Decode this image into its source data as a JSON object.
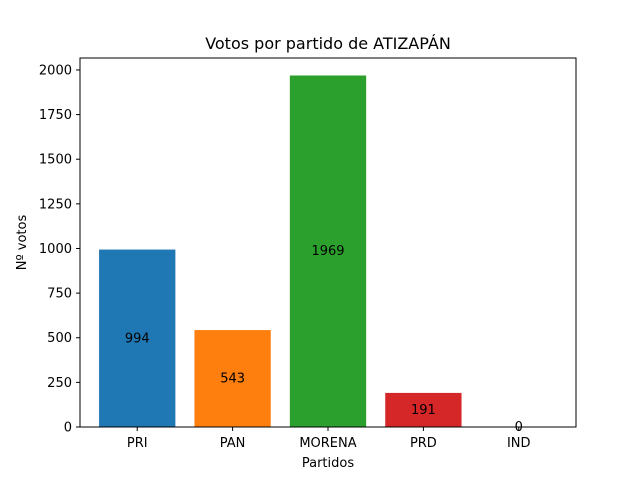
{
  "chart_data": {
    "type": "bar",
    "title": "Votos por partido de ATIZAPÁN",
    "xlabel": "Partidos",
    "ylabel": "Nº votos",
    "categories": [
      "PRI",
      "PAN",
      "MORENA",
      "PRD",
      "IND"
    ],
    "values": [
      994,
      543,
      1969,
      191,
      0
    ],
    "value_labels": [
      "994",
      "543",
      "1969",
      "191",
      "0"
    ],
    "colors": [
      "#1f77b4",
      "#ff7f0e",
      "#2ca02c",
      "#d62728",
      "#9467bd"
    ],
    "ylim": [
      0,
      2067
    ],
    "yticks": [
      0,
      250,
      500,
      750,
      1000,
      1250,
      1500,
      1750,
      2000
    ],
    "ytick_labels": [
      "0",
      "250",
      "500",
      "750",
      "1000",
      "1250",
      "1500",
      "1750",
      "2000"
    ],
    "grid": false,
    "legend": "none"
  }
}
